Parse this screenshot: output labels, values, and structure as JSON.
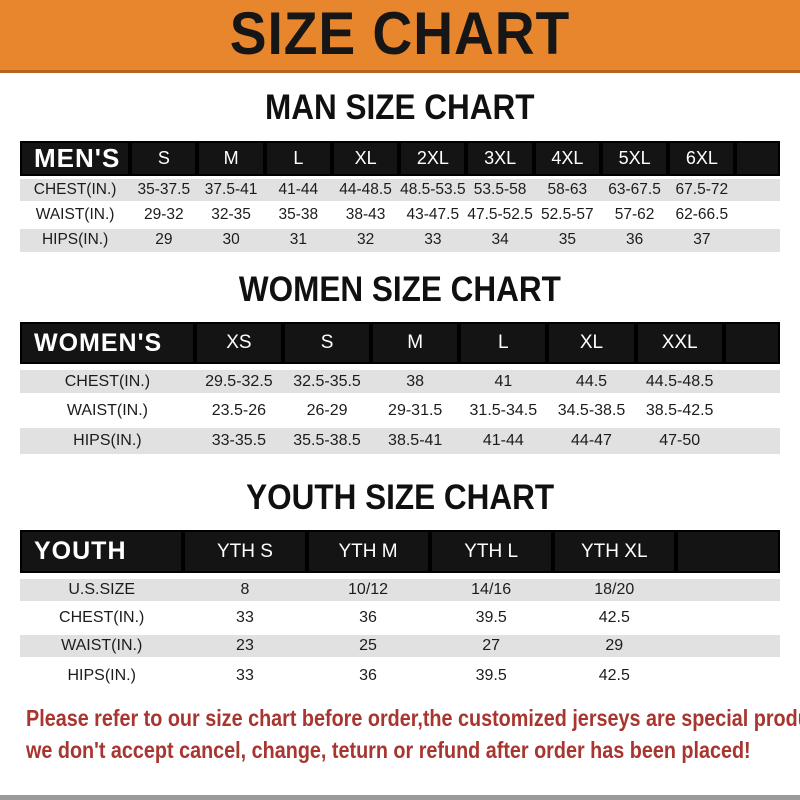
{
  "banner": {
    "title": "SIZE CHART"
  },
  "sections": [
    {
      "heading": "MAN SIZE CHART",
      "header_label": "MEN'S",
      "columns": [
        "S",
        "M",
        "L",
        "XL",
        "2XL",
        "3XL",
        "4XL",
        "5XL",
        "6XL"
      ],
      "rows": [
        {
          "label": "CHEST(IN.)",
          "values": [
            "35-37.5",
            "37.5-41",
            "41-44",
            "44-48.5",
            "48.5-53.5",
            "53.5-58",
            "58-63",
            "63-67.5",
            "67.5-72"
          ]
        },
        {
          "label": "WAIST(IN.)",
          "values": [
            "29-32",
            "32-35",
            "35-38",
            "38-43",
            "43-47.5",
            "47.5-52.5",
            "52.5-57",
            "57-62",
            "62-66.5"
          ]
        },
        {
          "label": "HIPS(IN.)",
          "values": [
            "29",
            "30",
            "31",
            "32",
            "33",
            "34",
            "35",
            "36",
            "37"
          ]
        }
      ]
    },
    {
      "heading": "WOMEN SIZE CHART",
      "header_label": "WOMEN'S",
      "columns": [
        "XS",
        "S",
        "M",
        "L",
        "XL",
        "XXL"
      ],
      "rows": [
        {
          "label": "CHEST(IN.)",
          "values": [
            "29.5-32.5",
            "32.5-35.5",
            "38",
            "41",
            "44.5",
            "44.5-48.5"
          ]
        },
        {
          "label": "WAIST(IN.)",
          "values": [
            "23.5-26",
            "26-29",
            "29-31.5",
            "31.5-34.5",
            "34.5-38.5",
            "38.5-42.5"
          ]
        },
        {
          "label": "HIPS(IN.)",
          "values": [
            "33-35.5",
            "35.5-38.5",
            "38.5-41",
            "41-44",
            "44-47",
            "47-50"
          ]
        }
      ]
    },
    {
      "heading": "YOUTH SIZE CHART",
      "header_label": "YOUTH",
      "columns": [
        "YTH S",
        "YTH M",
        "YTH L",
        "YTH XL"
      ],
      "rows": [
        {
          "label": "U.S.SIZE",
          "values": [
            "8",
            "10/12",
            "14/16",
            "18/20"
          ]
        },
        {
          "label": "CHEST(IN.)",
          "values": [
            "33",
            "36",
            "39.5",
            "42.5"
          ]
        },
        {
          "label": "WAIST(IN.)",
          "values": [
            "23",
            "25",
            "27",
            "29"
          ]
        },
        {
          "label": "HIPS(IN.)",
          "values": [
            "33",
            "36",
            "39.5",
            "42.5"
          ]
        }
      ]
    }
  ],
  "disclaimer": {
    "line1": "Please refer to our size chart before order,the customized jerseys are special products,",
    "line2": "we don't accept cancel, change, teturn or refund after order has been placed!"
  },
  "colors": {
    "banner_bg": "#E8862D",
    "header_bg": "#141414",
    "row_alt_bg": "#E1E1E1",
    "disclaimer_red": "#A93530"
  }
}
